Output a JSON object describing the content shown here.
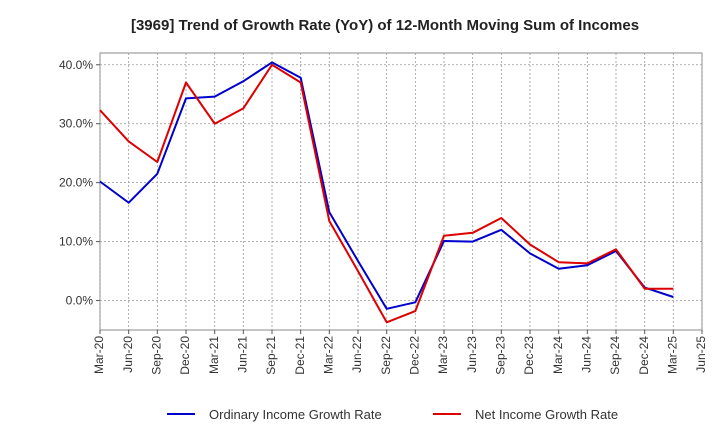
{
  "chart_data": {
    "type": "line",
    "title": "[3969]  Trend of Growth Rate (YoY) of 12-Month Moving Sum of Incomes",
    "xlabel": "",
    "ylabel": "",
    "categories": [
      "Mar-20",
      "Jun-20",
      "Sep-20",
      "Dec-20",
      "Mar-21",
      "Jun-21",
      "Sep-21",
      "Dec-21",
      "Mar-22",
      "Jun-22",
      "Sep-22",
      "Dec-22",
      "Mar-23",
      "Jun-23",
      "Sep-23",
      "Dec-23",
      "Mar-24",
      "Jun-24",
      "Sep-24",
      "Dec-24",
      "Mar-25",
      "Jun-25"
    ],
    "y_ticks": [
      0,
      10,
      20,
      30,
      40
    ],
    "y_tick_labels": [
      "0.0%",
      "10.0%",
      "20.0%",
      "30.0%",
      "40.0%"
    ],
    "ylim": [
      -5,
      42
    ],
    "grid": true,
    "legend_position": "bottom",
    "series": [
      {
        "name": "Ordinary Income Growth Rate",
        "color": "#0000cc",
        "values": [
          20.2,
          16.6,
          21.5,
          34.3,
          34.6,
          37.2,
          40.4,
          37.8,
          15.0,
          6.7,
          -1.4,
          -0.3,
          10.1,
          10.0,
          12.0,
          8.0,
          5.4,
          6.0,
          8.4,
          2.2,
          0.6,
          null
        ]
      },
      {
        "name": "Net Income Growth Rate",
        "color": "#dd0000",
        "values": [
          32.3,
          27.0,
          23.5,
          37.0,
          30.0,
          32.6,
          40.0,
          37.0,
          13.5,
          5.0,
          -3.7,
          -1.8,
          11.0,
          11.5,
          14.0,
          9.5,
          6.5,
          6.3,
          8.7,
          2.0,
          2.0,
          null
        ]
      }
    ]
  }
}
